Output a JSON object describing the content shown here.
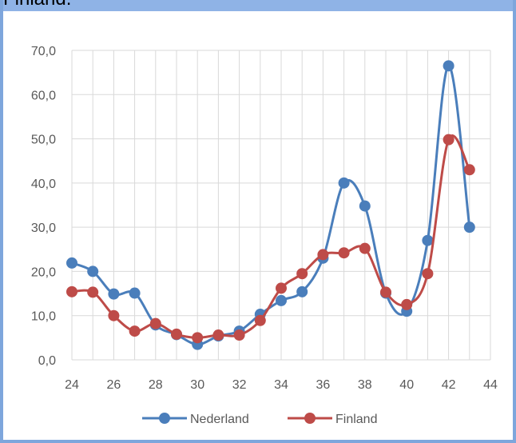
{
  "banner": {
    "text": "Finland."
  },
  "colors": {
    "nederland": "#4a7ebb",
    "finland": "#be4b48",
    "grid": "#d9d9d9",
    "banner": "#8fb3e6",
    "border": "#7ea6dc"
  },
  "chart_data": {
    "type": "line",
    "smooth": true,
    "x": [
      24,
      25,
      26,
      27,
      28,
      29,
      30,
      31,
      32,
      33,
      34,
      35,
      36,
      37,
      38,
      39,
      40,
      41,
      42,
      43
    ],
    "xlim": [
      24,
      44
    ],
    "x_ticks": [
      "24",
      "26",
      "28",
      "30",
      "32",
      "34",
      "36",
      "38",
      "40",
      "42",
      "44"
    ],
    "ylim": [
      0,
      70
    ],
    "y_ticks": [
      "0,0",
      "10,0",
      "20,0",
      "30,0",
      "40,0",
      "50,0",
      "60,0",
      "70,0"
    ],
    "grid": true,
    "legend_position": "bottom",
    "series": [
      {
        "name": "Nederland",
        "color": "#4a7ebb",
        "values": [
          21.9,
          20.0,
          14.9,
          15.1,
          7.9,
          5.7,
          3.5,
          5.4,
          6.5,
          10.3,
          13.4,
          15.4,
          23.0,
          40.0,
          34.8,
          15.1,
          11.0,
          27.0,
          66.5,
          30.0
        ]
      },
      {
        "name": "Finland",
        "color": "#be4b48",
        "values": [
          15.4,
          15.3,
          10.0,
          6.5,
          8.2,
          5.8,
          5.0,
          5.6,
          5.6,
          8.9,
          16.2,
          19.5,
          23.8,
          24.2,
          25.2,
          15.3,
          12.5,
          19.5,
          49.8,
          43.0
        ]
      }
    ]
  }
}
